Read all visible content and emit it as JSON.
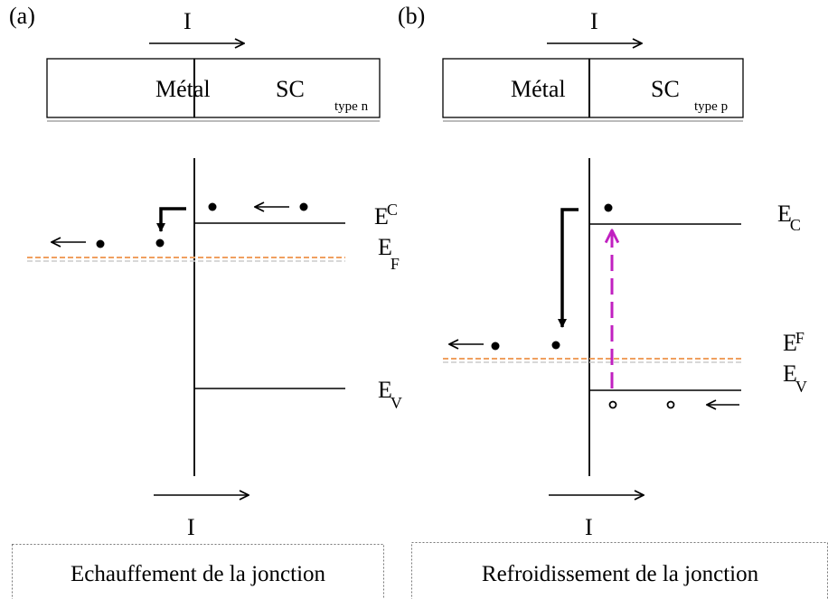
{
  "panels": [
    {
      "label": "(a)",
      "current_top": "I",
      "metal": "Métal",
      "sc": "SC",
      "sc_type": "type n",
      "levels": [
        {
          "symbol": "E",
          "subscript": "C"
        },
        {
          "symbol": "E",
          "subscript": "F"
        },
        {
          "symbol": "E",
          "subscript": "V"
        }
      ],
      "current_bottom": "I",
      "caption": "Echauffement de la jonction"
    },
    {
      "label": "(b)",
      "current_top": "I",
      "metal": "Métal",
      "sc": "SC",
      "sc_type": "type p",
      "levels": [
        {
          "symbol": "E",
          "subscript": "C"
        },
        {
          "symbol": "E",
          "subscript": "F"
        },
        {
          "symbol": "E",
          "subscript": "V"
        }
      ],
      "current_bottom": "I",
      "caption": "Refroidissement de la jonction"
    }
  ]
}
